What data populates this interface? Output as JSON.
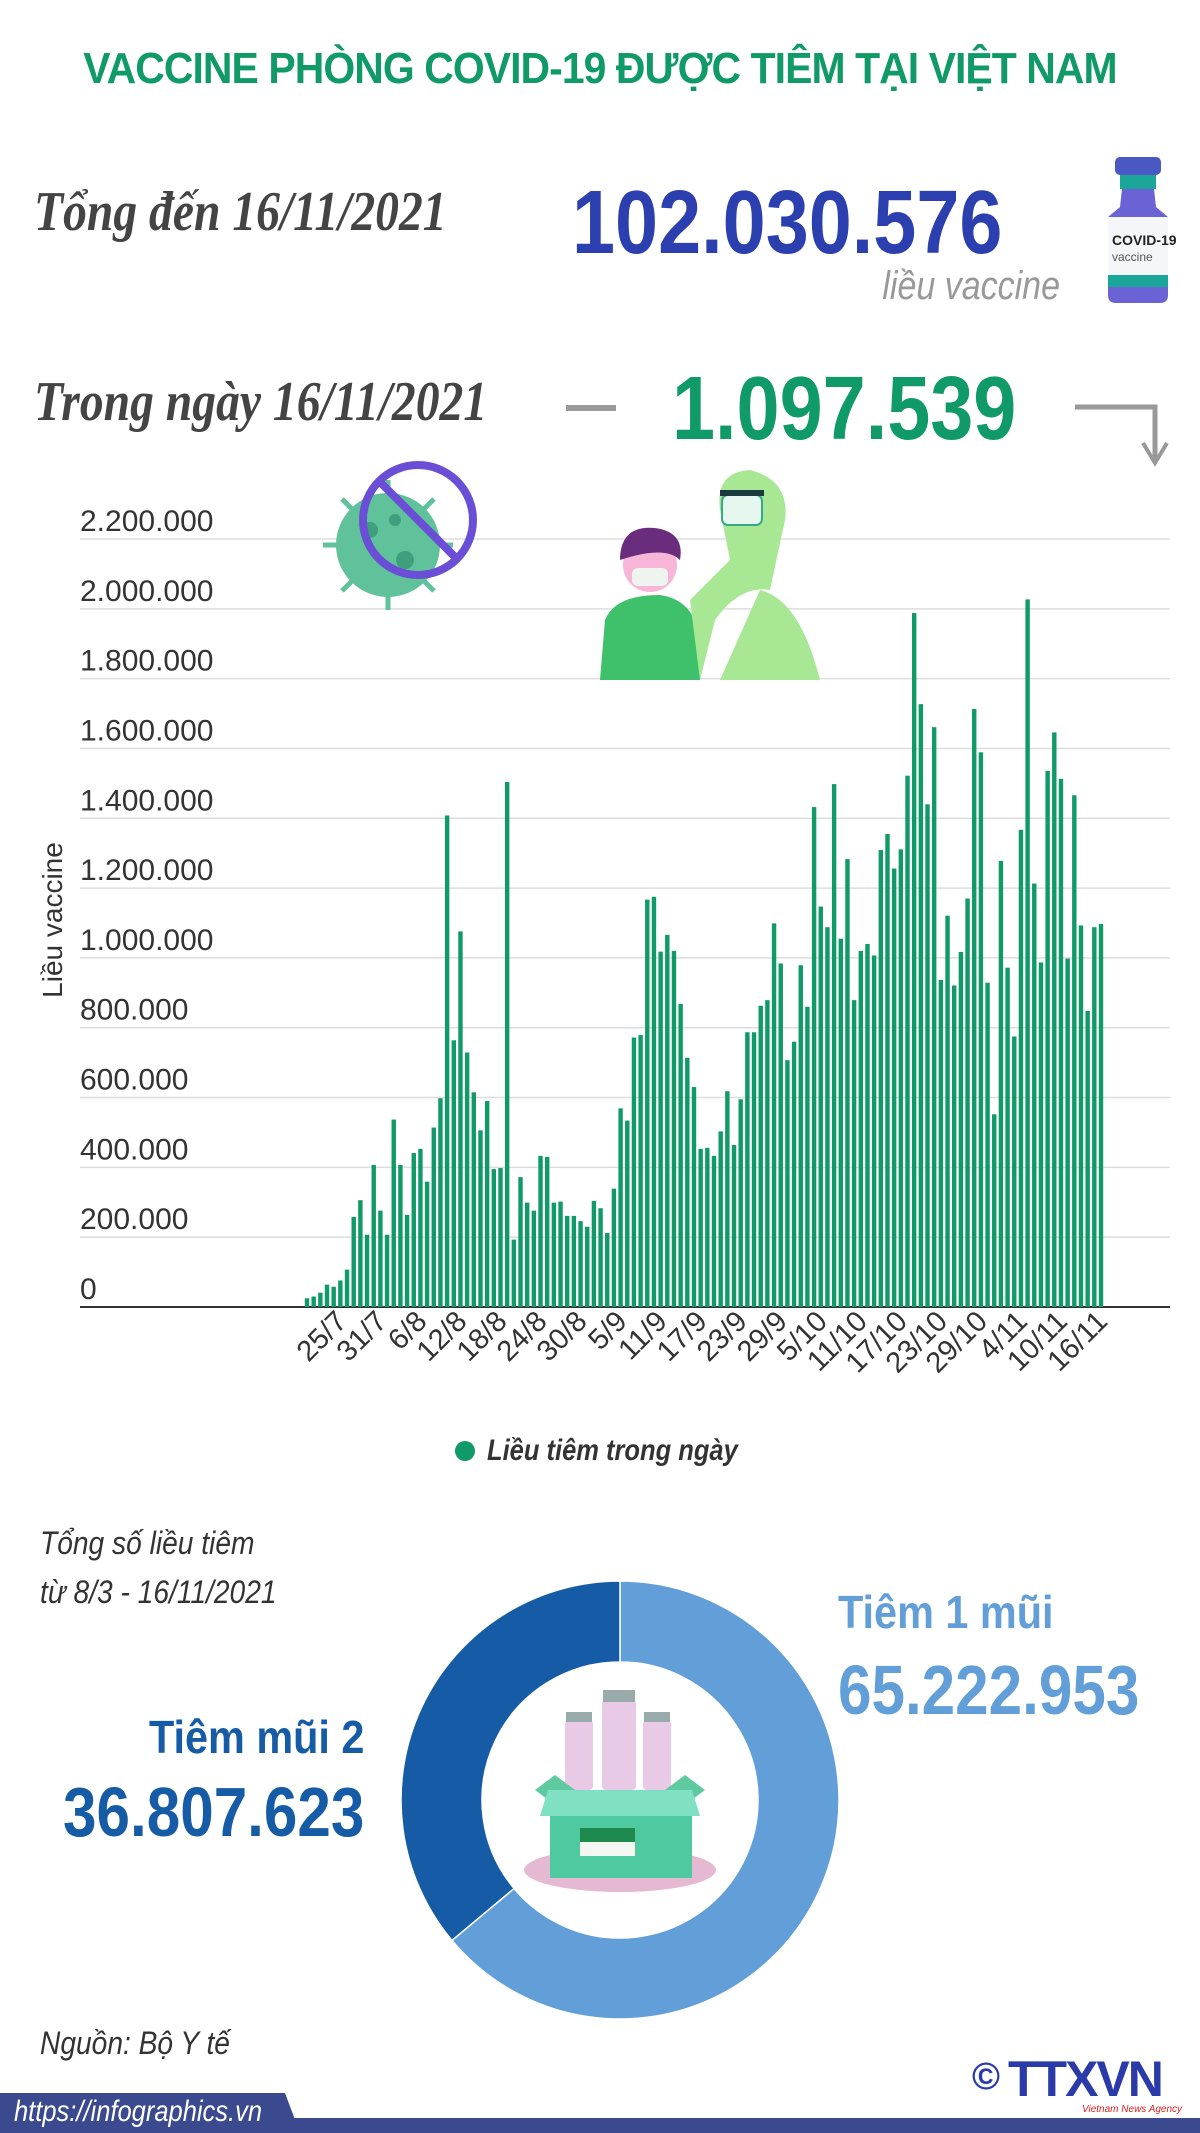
{
  "header": {
    "title": "VACCINE PHÒNG COVID-19 ĐƯỢC TIÊM TẠI VIỆT NAM",
    "total_label": "Tổng đến 16/11/2021",
    "total_value": "102.030.576",
    "total_unit": "liều vaccine",
    "day_label": "Trong ngày 16/11/2021",
    "day_value": "1.097.539",
    "vial_text": "COVID-19 vaccine"
  },
  "colors": {
    "accent_green": "#0f9a67",
    "total_blue": "#2b3fae",
    "dose1": "#629ed8",
    "dose2": "#165ba5",
    "footer": "#3b4a8f"
  },
  "chart_data": [
    {
      "type": "bar",
      "title": "",
      "xlabel": "",
      "ylabel": "Liều vaccine",
      "ylim": [
        0,
        2200000
      ],
      "yticks": [
        "0",
        "200.000",
        "400.000",
        "600.000",
        "800.000",
        "1.000.000",
        "1.200.000",
        "1.400.000",
        "1.600.000",
        "1.800.000",
        "2.000.000",
        "2.200.000"
      ],
      "grid": true,
      "legend": {
        "position": "bottom",
        "entries": [
          "Liều tiêm trong ngày"
        ]
      },
      "x_start": "20/7/2021",
      "x_end": "16/11/2021",
      "xtick_labels": [
        "25/7",
        "31/7",
        "6/8",
        "12/8",
        "18/8",
        "24/8",
        "30/8",
        "5/9",
        "11/9",
        "17/9",
        "23/9",
        "29/9",
        "5/10",
        "11/10",
        "17/10",
        "23/10",
        "29/10",
        "4/11",
        "10/11",
        "16/11"
      ],
      "series": [
        {
          "name": "Liều tiêm trong ngày",
          "color": "#0f9a67",
          "values": [
            25000,
            30000,
            41000,
            64000,
            58000,
            76000,
            107000,
            258000,
            306000,
            207000,
            407000,
            276000,
            207000,
            537000,
            407000,
            264000,
            441000,
            453000,
            359000,
            514000,
            598000,
            1408000,
            764000,
            1076000,
            729000,
            615000,
            506000,
            590000,
            395000,
            398000,
            1504000,
            193000,
            372000,
            299000,
            276000,
            433000,
            430000,
            299000,
            302000,
            261000,
            261000,
            246000,
            230000,
            304000,
            283000,
            212000,
            339000,
            569000,
            534000,
            772000,
            779000,
            1167000,
            1175000,
            1018000,
            1066000,
            1020000,
            868000,
            714000,
            630000,
            453000,
            456000,
            433000,
            503000,
            618000,
            464000,
            595000,
            787000,
            787000,
            863000,
            879000,
            1099000,
            984000,
            707000,
            760000,
            979000,
            860000,
            1432000,
            1147000,
            1088000,
            1498000,
            1055000,
            1283000,
            879000,
            1020000,
            1040000,
            1007000,
            1309000,
            1355000,
            1256000,
            1311000,
            1522000,
            1988000,
            1727000,
            1440000,
            1661000,
            937000,
            1121000,
            921000,
            1017000,
            1170000,
            1713000,
            1589000,
            929000,
            552000,
            1278000,
            972000,
            775000,
            1367000,
            2027000,
            1213000,
            987000,
            1536000,
            1646000,
            1513000,
            998000,
            1466000,
            1093000,
            848000,
            1088000,
            1097539
          ]
        }
      ]
    },
    {
      "type": "pie",
      "title": "Tổng số liều tiêm",
      "subtitle": "từ 8/3 - 16/11/2021",
      "donut": true,
      "slices": [
        {
          "label": "Tiêm 1 mũi",
          "value": 65222953,
          "display": "65.222.953",
          "color": "#629ed8"
        },
        {
          "label": "Tiêm mũi 2",
          "value": 36807623,
          "display": "36.807.623",
          "color": "#165ba5"
        }
      ]
    }
  ],
  "footer": {
    "source": "Nguồn: Bộ Y tế",
    "url": "https://infographics.vn",
    "logo": "TTXVN",
    "logo_sub": "Vietnam News Agency",
    "copyright": "©"
  }
}
